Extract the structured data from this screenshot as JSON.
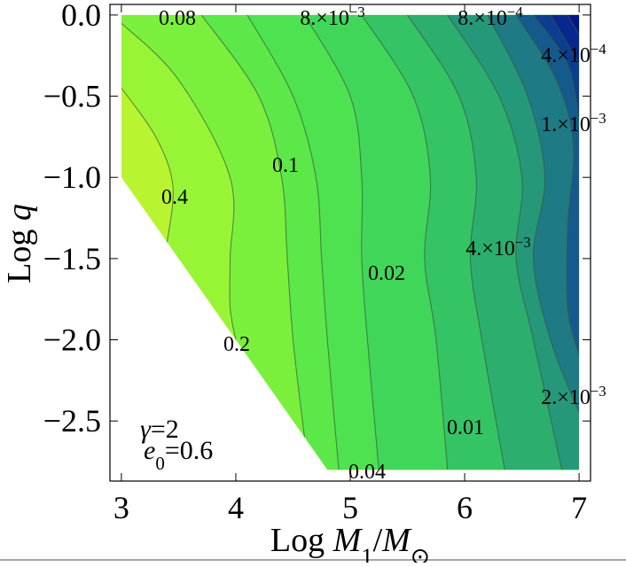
{
  "chart_data": {
    "type": "contour",
    "xlim": [
      2.9,
      7.1
    ],
    "ylim": [
      -2.87,
      0.065
    ],
    "xticks": [
      3,
      4,
      5,
      6,
      7
    ],
    "yticks": [
      {
        "value": 0,
        "label": "0.0"
      },
      {
        "value": -0.5,
        "label": "−0.5"
      },
      {
        "value": -1.0,
        "label": "−1.0"
      },
      {
        "value": -1.5,
        "label": "−1.5"
      },
      {
        "value": -2.0,
        "label": "−2.0"
      },
      {
        "value": -2.5,
        "label": "−2.5"
      }
    ],
    "x_label": [
      {
        "text": "Log "
      },
      {
        "text": "M",
        "style": "italic"
      },
      {
        "text": "1",
        "style": "sub"
      },
      {
        "text": "/"
      },
      {
        "text": "M",
        "style": "italic"
      },
      {
        "text": "⊙",
        "style": "sub"
      }
    ],
    "y_label": [
      {
        "text": "Log "
      },
      {
        "text": "q",
        "style": "italic"
      }
    ],
    "annotations": [
      [
        {
          "text": "γ",
          "style": "italic"
        },
        {
          "text": "=2"
        }
      ],
      [
        {
          "text": "e",
          "style": "italic"
        },
        {
          "text": "0",
          "style": "sub"
        },
        {
          "text": "=0.6"
        }
      ]
    ],
    "colors": [
      "#b8f530",
      "#98f535",
      "#7af03c",
      "#5ce848",
      "#4ee250",
      "#40d65a",
      "#35c464",
      "#2cae6e",
      "#26987a",
      "#1e7a84",
      "#145a8c",
      "#0c3e90",
      "#082890",
      "#041488"
    ],
    "contours": [
      {
        "value": 0.4,
        "segments": [
          {
            "text": "0.4"
          }
        ]
      },
      {
        "value": 0.2,
        "segments": [
          {
            "text": "0.2"
          }
        ]
      },
      {
        "value": 0.1,
        "segments": [
          {
            "text": "0.1"
          }
        ]
      },
      {
        "value": 0.08,
        "segments": [
          {
            "text": "0.08"
          }
        ]
      },
      {
        "value": 0.04,
        "segments": [
          {
            "text": "0.04"
          }
        ]
      },
      {
        "value": 0.02,
        "segments": [
          {
            "text": "0.02"
          }
        ]
      },
      {
        "value": 0.01,
        "segments": [
          {
            "text": "0.01"
          }
        ]
      },
      {
        "value": 0.008,
        "segments": [
          {
            "text": "8.×10"
          },
          {
            "text": "−3",
            "style": "sup"
          }
        ]
      },
      {
        "value": 0.004,
        "segments": [
          {
            "text": "4.×10"
          },
          {
            "text": "−3",
            "style": "sup"
          }
        ]
      },
      {
        "value": 0.002,
        "segments": [
          {
            "text": "2.×10"
          },
          {
            "text": "−3",
            "style": "sup"
          }
        ]
      },
      {
        "value": 0.001,
        "segments": [
          {
            "text": "1.×10"
          },
          {
            "text": "−3",
            "style": "sup"
          }
        ]
      },
      {
        "value": 0.0008,
        "segments": [
          {
            "text": "8.×10"
          },
          {
            "text": "−4",
            "style": "sup"
          }
        ]
      },
      {
        "value": 0.0004,
        "segments": [
          {
            "text": "4.×10"
          },
          {
            "text": "−4",
            "style": "sup"
          }
        ]
      }
    ]
  }
}
